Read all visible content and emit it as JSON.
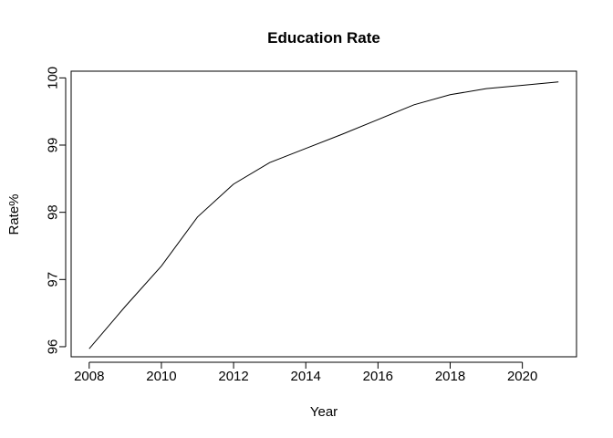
{
  "chart_data": {
    "type": "line",
    "title": "Education Rate",
    "xlabel": "Year",
    "ylabel": "Rate%",
    "x": [
      2008,
      2009,
      2010,
      2011,
      2012,
      2013,
      2014,
      2015,
      2016,
      2017,
      2018,
      2019,
      2020,
      2021
    ],
    "series": [
      {
        "values": [
          95.97,
          96.6,
          97.2,
          97.93,
          98.42,
          98.74,
          98.95,
          99.16,
          99.38,
          99.6,
          99.75,
          99.84,
          99.89,
          99.94
        ]
      }
    ],
    "xlim": [
      2007.5,
      2021.5
    ],
    "ylim": [
      95.85,
      100.1
    ],
    "xticks": [
      2008,
      2010,
      2012,
      2014,
      2016,
      2018,
      2020
    ],
    "yticks": [
      96,
      97,
      98,
      99,
      100
    ],
    "grid": false,
    "legend": "none",
    "colors": {
      "line": "#000000",
      "background": "#ffffff"
    }
  }
}
